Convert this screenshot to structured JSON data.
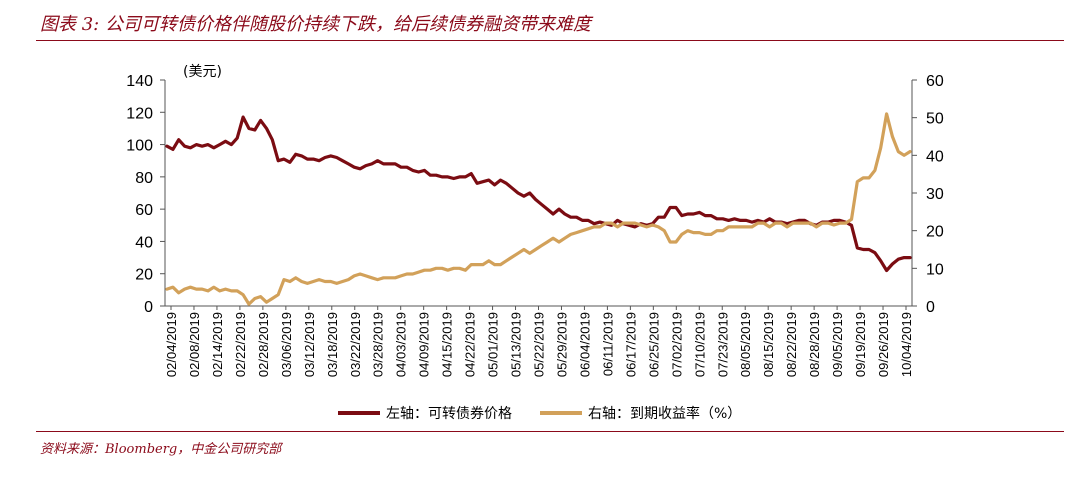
{
  "figure": {
    "title": "图表 3: 公司可转债价格伴随股价持续下跌，给后续债券融资带来难度",
    "source": "资料来源：Bloomberg，中金公司研究部"
  },
  "chart_data": {
    "type": "line",
    "left_axis": {
      "unit_label": "(美元)",
      "ylim": [
        0,
        140
      ],
      "ticks": [
        0,
        20,
        40,
        60,
        80,
        100,
        120,
        140
      ]
    },
    "right_axis": {
      "ylim": [
        0,
        60
      ],
      "ticks": [
        0,
        10,
        20,
        30,
        40,
        50,
        60
      ]
    },
    "x_tick_labels": [
      "02/04/2019",
      "02/08/2019",
      "02/14/2019",
      "02/22/2019",
      "02/28/2019",
      "03/06/2019",
      "03/12/2019",
      "03/18/2019",
      "03/22/2019",
      "03/28/2019",
      "04/03/2019",
      "04/09/2019",
      "04/15/2019",
      "04/22/2019",
      "05/01/2019",
      "05/13/2019",
      "05/22/2019",
      "05/29/2019",
      "06/04/2019",
      "06/11/2019",
      "06/17/2019",
      "06/25/2019",
      "07/02/2019",
      "07/10/2019",
      "07/23/2019",
      "08/05/2019",
      "08/15/2019",
      "08/22/2019",
      "08/28/2019",
      "09/05/2019",
      "09/19/2019",
      "09/26/2019",
      "10/04/2019"
    ],
    "grid": false,
    "legend_position": "bottom",
    "series": [
      {
        "name": "左轴：可转债券价格",
        "axis": "left",
        "color": "#7b0c12",
        "values": [
          99,
          97,
          103,
          99,
          98,
          100,
          99,
          100,
          98,
          100,
          102,
          100,
          104,
          117,
          110,
          109,
          115,
          110,
          103,
          90,
          91,
          89,
          94,
          93,
          91,
          91,
          90,
          92,
          93,
          92,
          90,
          88,
          86,
          85,
          87,
          88,
          90,
          88,
          88,
          88,
          86,
          86,
          84,
          83,
          84,
          81,
          81,
          80,
          80,
          79,
          80,
          80,
          82,
          76,
          77,
          78,
          75,
          78,
          76,
          73,
          70,
          68,
          70,
          66,
          63,
          60,
          57,
          60,
          57,
          55,
          55,
          53,
          53,
          51,
          52,
          51,
          50,
          53,
          51,
          50,
          49,
          51,
          50,
          51,
          55,
          55,
          61,
          61,
          56,
          57,
          57,
          58,
          56,
          56,
          54,
          54,
          53,
          54,
          53,
          53,
          52,
          53,
          52,
          54,
          52,
          52,
          51,
          52,
          53,
          53,
          51,
          50,
          52,
          52,
          53,
          53,
          52,
          50,
          36,
          35,
          35,
          33,
          28,
          22,
          26,
          29,
          30,
          30
        ],
        "ylim": [
          0,
          140
        ]
      },
      {
        "name": "右轴：到期收益率（%）",
        "axis": "right",
        "color": "#d2a15a",
        "values": [
          4.5,
          5,
          3.5,
          4.5,
          5,
          4.5,
          4.5,
          4,
          5,
          4,
          4.5,
          4,
          4,
          3,
          0.5,
          2,
          2.5,
          1,
          2,
          3,
          7,
          6.5,
          7.5,
          6.5,
          6,
          6.5,
          7,
          6.5,
          6.5,
          6,
          6.5,
          7,
          8,
          8.5,
          8,
          7.5,
          7,
          7.5,
          7.5,
          7.5,
          8,
          8.5,
          8.5,
          9,
          9.5,
          9.5,
          10,
          10,
          9.5,
          10,
          10,
          9.5,
          11,
          11,
          11,
          12,
          11,
          11,
          12,
          13,
          14,
          15,
          14,
          15,
          16,
          17,
          18,
          17,
          18,
          19,
          19.5,
          20,
          20.5,
          21,
          21,
          22,
          22,
          21,
          22,
          22,
          22,
          21.5,
          21,
          21.5,
          21,
          20,
          17,
          17,
          19,
          20,
          19.5,
          19.5,
          19,
          19,
          20,
          20,
          21,
          21,
          21,
          21,
          21,
          22,
          22,
          21,
          22,
          22,
          21,
          22,
          22,
          22,
          22,
          21,
          22,
          22,
          21.5,
          22,
          22,
          23,
          33,
          34,
          34,
          36,
          42,
          51,
          45,
          41,
          40,
          41
        ],
        "ylim": [
          0,
          60
        ]
      }
    ]
  }
}
